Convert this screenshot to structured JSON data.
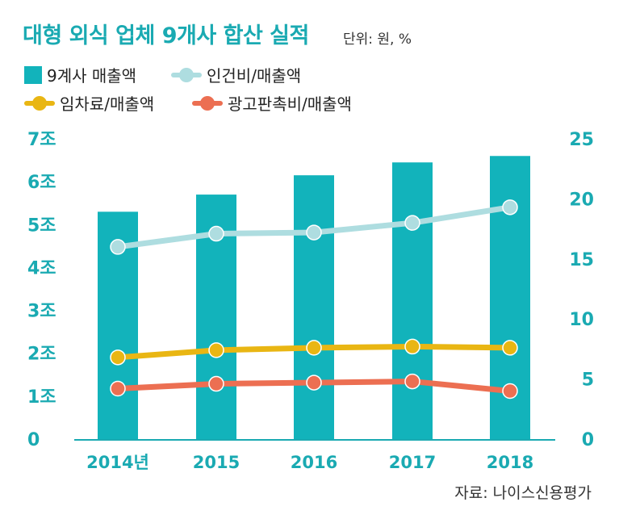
{
  "header": {
    "title": "대형 외식 업체 9개사 합산 실적",
    "unit": "단위: 원, %"
  },
  "legend": [
    {
      "label": "9계사 매출액",
      "color": "#12b3bb",
      "kind": "bar"
    },
    {
      "label": "인건비/매출액",
      "color": "#aedde0",
      "kind": "line"
    },
    {
      "label": "임차료/매출액",
      "color": "#e9b613",
      "kind": "line"
    },
    {
      "label": "광고판촉비/매출액",
      "color": "#ec6f52",
      "kind": "line"
    }
  ],
  "source": "자료: 나이스신용평가",
  "colors": {
    "axis": "#1aaab2",
    "bar": "#12b3bb"
  },
  "chart_data": {
    "type": "bar",
    "categories": [
      "2014년",
      "2015",
      "2016",
      "2017",
      "2018"
    ],
    "left_axis": {
      "ticks": [
        "0",
        "1조",
        "2조",
        "3조",
        "4조",
        "5조",
        "6조",
        "7조"
      ],
      "ylim": [
        0,
        7
      ]
    },
    "right_axis": {
      "ticks": [
        "0",
        "5",
        "10",
        "15",
        "20",
        "25"
      ],
      "ylim": [
        0,
        25
      ]
    },
    "series": [
      {
        "name": "9계사 매출액",
        "type": "bar",
        "axis": "left",
        "color": "#12b3bb",
        "values": [
          5.3,
          5.7,
          6.15,
          6.45,
          6.6
        ]
      },
      {
        "name": "인건비/매출액",
        "type": "line",
        "axis": "right",
        "color": "#aedde0",
        "values": [
          16.0,
          17.1,
          17.2,
          18.0,
          19.3
        ]
      },
      {
        "name": "임차료/매출액",
        "type": "line",
        "axis": "right",
        "color": "#e9b613",
        "values": [
          6.8,
          7.4,
          7.6,
          7.7,
          7.6
        ]
      },
      {
        "name": "광고판촉비/매출액",
        "type": "line",
        "axis": "right",
        "color": "#ec6f52",
        "values": [
          4.2,
          4.6,
          4.7,
          4.8,
          4.0
        ]
      }
    ]
  }
}
